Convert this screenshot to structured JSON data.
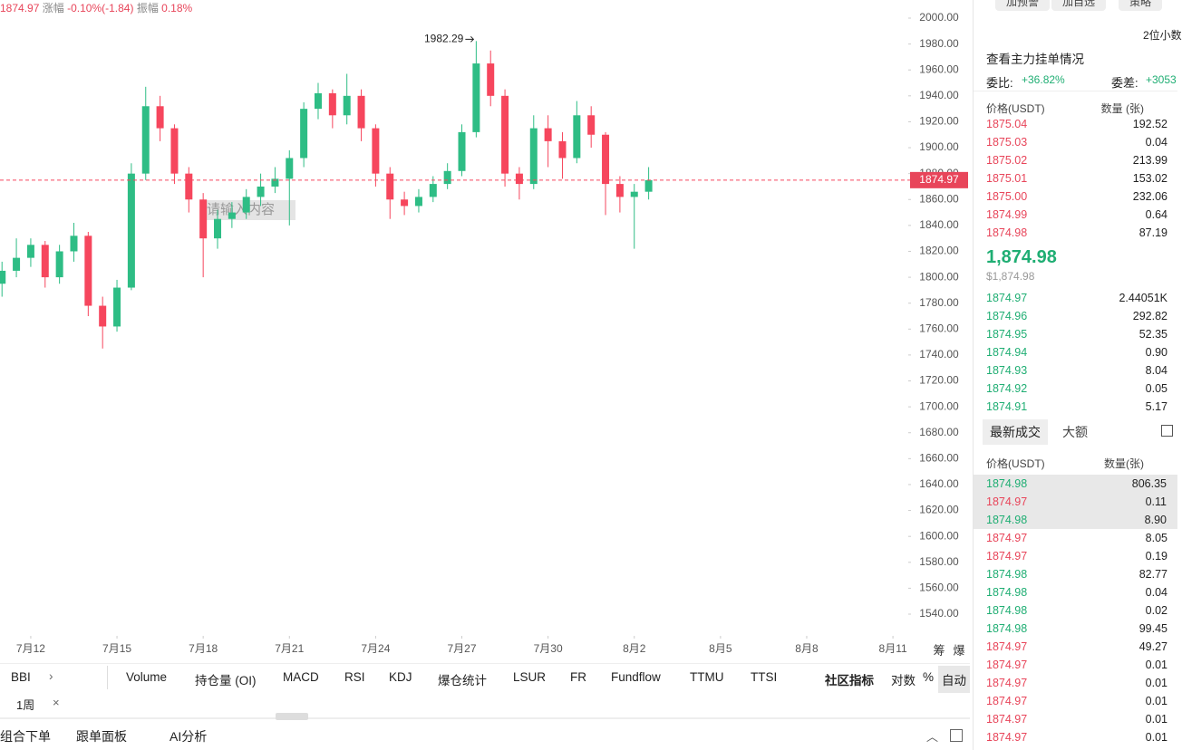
{
  "header": {
    "price": "1874.97",
    "change_label": "涨幅",
    "change": "-0.10%(-1.84)",
    "amp_label": "振幅",
    "amp": "0.18%"
  },
  "chart_data": {
    "type": "candlestick",
    "watermark": "请输入内容",
    "up_color": "#2ebd85",
    "down_color": "#f6465d",
    "x": [
      11,
      11.5,
      12,
      12.5,
      13,
      13.5,
      14,
      14.5,
      15,
      15.5,
      16,
      16.5,
      17,
      17.5,
      18,
      18.5,
      19,
      19.5,
      20,
      20.5,
      21,
      21.5,
      22,
      22.5,
      23,
      23.5,
      24,
      24.5,
      25,
      25.5,
      26,
      26.5,
      27,
      27.5,
      28,
      28.5,
      29,
      29.5,
      30,
      30.5,
      31,
      31.5,
      32,
      32.5,
      33,
      33.5
    ],
    "open": [
      1795,
      1805,
      1815,
      1825,
      1800,
      1820,
      1832,
      1778,
      1762,
      1792,
      1880,
      1932,
      1915,
      1880,
      1860,
      1830,
      1845,
      1850,
      1862,
      1870,
      1876,
      1892,
      1930,
      1942,
      1925,
      1940,
      1915,
      1880,
      1860,
      1855,
      1862,
      1872,
      1882,
      1912,
      1965,
      1940,
      1880,
      1872,
      1915,
      1905,
      1892,
      1925,
      1910,
      1872,
      1862,
      1866
    ],
    "high": [
      1812,
      1830,
      1830,
      1828,
      1825,
      1842,
      1835,
      1785,
      1798,
      1888,
      1947,
      1940,
      1918,
      1885,
      1865,
      1852,
      1858,
      1868,
      1880,
      1885,
      1898,
      1935,
      1950,
      1945,
      1957,
      1945,
      1918,
      1885,
      1866,
      1868,
      1878,
      1888,
      1918,
      1982.29,
      1975,
      1945,
      1885,
      1925,
      1925,
      1912,
      1936,
      1932,
      1912,
      1878,
      1872,
      1885
    ],
    "low": [
      1785,
      1800,
      1808,
      1792,
      1795,
      1812,
      1770,
      1745,
      1758,
      1790,
      1875,
      1905,
      1872,
      1850,
      1800,
      1822,
      1838,
      1845,
      1855,
      1865,
      1840,
      1885,
      1922,
      1915,
      1918,
      1905,
      1870,
      1845,
      1848,
      1850,
      1858,
      1868,
      1878,
      1908,
      1932,
      1870,
      1860,
      1868,
      1885,
      1876,
      1888,
      1900,
      1848,
      1850,
      1822,
      1860
    ],
    "close": [
      1805,
      1815,
      1825,
      1800,
      1820,
      1832,
      1778,
      1762,
      1792,
      1880,
      1932,
      1915,
      1880,
      1860,
      1830,
      1845,
      1850,
      1862,
      1870,
      1876,
      1892,
      1930,
      1942,
      1925,
      1940,
      1915,
      1880,
      1860,
      1855,
      1862,
      1872,
      1882,
      1912,
      1965,
      1940,
      1880,
      1872,
      1915,
      1905,
      1892,
      1925,
      1910,
      1872,
      1862,
      1866,
      1874.97
    ],
    "high_marker": {
      "x": 27.5,
      "value": 1982.29
    },
    "last_price": {
      "value": 1874.97,
      "label": "1874.97"
    },
    "xlim": [
      10.93,
      42.47
    ],
    "xticks": [
      {
        "value": 12,
        "label": "7月12"
      },
      {
        "value": 15,
        "label": "7月15"
      },
      {
        "value": 18,
        "label": "7月18"
      },
      {
        "value": 21,
        "label": "7月21"
      },
      {
        "value": 24,
        "label": "7月24"
      },
      {
        "value": 27,
        "label": "7月27"
      },
      {
        "value": 30,
        "label": "7月30"
      },
      {
        "value": 33,
        "label": "8月2"
      },
      {
        "value": 36,
        "label": "8月5"
      },
      {
        "value": 39,
        "label": "8月8"
      },
      {
        "value": 42,
        "label": "8月11"
      }
    ],
    "ylim": [
      1540,
      2000
    ],
    "yticks": [
      {
        "value": 1540,
        "label": "1540.00"
      },
      {
        "value": 1560,
        "label": "1560.00"
      },
      {
        "value": 1580,
        "label": "1580.00"
      },
      {
        "value": 1600,
        "label": "1600.00"
      },
      {
        "value": 1620,
        "label": "1620.00"
      },
      {
        "value": 1640,
        "label": "1640.00"
      },
      {
        "value": 1660,
        "label": "1660.00"
      },
      {
        "value": 1680,
        "label": "1680.00"
      },
      {
        "value": 1700,
        "label": "1700.00"
      },
      {
        "value": 1720,
        "label": "1720.00"
      },
      {
        "value": 1740,
        "label": "1740.00"
      },
      {
        "value": 1760,
        "label": "1760.00"
      },
      {
        "value": 1780,
        "label": "1780.00"
      },
      {
        "value": 1800,
        "label": "1800.00"
      },
      {
        "value": 1820,
        "label": "1820.00"
      },
      {
        "value": 1840,
        "label": "1840.00"
      },
      {
        "value": 1860,
        "label": "1860.00"
      },
      {
        "value": 1880,
        "label": "1880.00"
      },
      {
        "value": 1900,
        "label": "1900.00"
      },
      {
        "value": 1920,
        "label": "1920.00"
      },
      {
        "value": 1940,
        "label": "1940.00"
      },
      {
        "value": 1960,
        "label": "1960.00"
      },
      {
        "value": 1980,
        "label": "1980.00"
      },
      {
        "value": 2000,
        "label": "2000.00"
      }
    ],
    "axis_icons": [
      "筹",
      "爆"
    ]
  },
  "indicators": {
    "left": "BBI",
    "tabs": [
      "Volume",
      "持仓量 (OI)",
      "MACD",
      "RSI",
      "KDJ",
      "爆仓统计",
      "LSUR",
      "FR",
      "Fundflow",
      "TTMU",
      "TTSI"
    ],
    "community": "社区指标",
    "log": "对数",
    "percent": "%",
    "auto": "自动",
    "period": "1周"
  },
  "bottom": [
    "组合下单",
    "跟单面板",
    "AI分析"
  ],
  "panel": {
    "buttons": [
      "加预警",
      "加自选",
      "策略"
    ],
    "decimals": "2位小数",
    "main_orders": "查看主力挂单情况",
    "ratio_label": "委比:",
    "ratio": "+36.82%",
    "diff_label": "委差:",
    "diff": "+3053",
    "book_header": [
      "价格(USDT)",
      "数量 (张)"
    ],
    "asks": [
      [
        "1875.04",
        "192.52"
      ],
      [
        "1875.03",
        "0.04"
      ],
      [
        "1875.02",
        "213.99"
      ],
      [
        "1875.01",
        "153.02"
      ],
      [
        "1875.00",
        "232.06"
      ],
      [
        "1874.99",
        "0.64"
      ],
      [
        "1874.98",
        "87.19"
      ]
    ],
    "mid": "1,874.98",
    "mid_usd": "$1,874.98",
    "bids": [
      [
        "1874.97",
        "2.44051K"
      ],
      [
        "1874.96",
        "292.82"
      ],
      [
        "1874.95",
        "52.35"
      ],
      [
        "1874.94",
        "0.90"
      ],
      [
        "1874.93",
        "8.04"
      ],
      [
        "1874.92",
        "0.05"
      ],
      [
        "1874.91",
        "5.17"
      ]
    ],
    "trade_tabs": [
      "最新成交",
      "大额"
    ],
    "trade_header": [
      "价格(USDT)",
      "数量(张)"
    ],
    "trades": [
      [
        "1874.98",
        "806.35",
        "buy"
      ],
      [
        "1874.97",
        "0.11",
        "sell"
      ],
      [
        "1874.98",
        "8.90",
        "buy"
      ],
      [
        "1874.97",
        "8.05",
        "sell"
      ],
      [
        "1874.97",
        "0.19",
        "sell"
      ],
      [
        "1874.98",
        "82.77",
        "buy"
      ],
      [
        "1874.98",
        "0.04",
        "buy"
      ],
      [
        "1874.98",
        "0.02",
        "buy"
      ],
      [
        "1874.98",
        "99.45",
        "buy"
      ],
      [
        "1874.97",
        "49.27",
        "sell"
      ],
      [
        "1874.97",
        "0.01",
        "sell"
      ],
      [
        "1874.97",
        "0.01",
        "sell"
      ],
      [
        "1874.97",
        "0.01",
        "sell"
      ],
      [
        "1874.97",
        "0.01",
        "sell"
      ],
      [
        "1874.97",
        "0.01",
        "sell"
      ]
    ]
  }
}
